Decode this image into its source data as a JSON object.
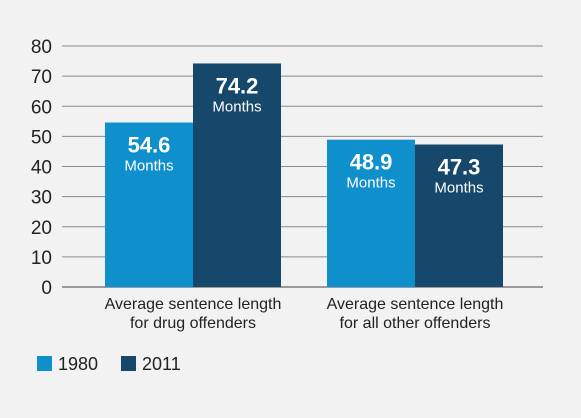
{
  "chart_data": {
    "type": "bar",
    "title": "",
    "xlabel": "",
    "ylabel": "",
    "ylim": [
      0,
      80
    ],
    "yticks": [
      0,
      10,
      20,
      30,
      40,
      50,
      60,
      70,
      80
    ],
    "grid": true,
    "legend_position": "bottom-left",
    "value_unit": "Months",
    "categories": [
      [
        "Average sentence length",
        "for drug offenders"
      ],
      [
        "Average sentence length",
        "for all other offenders"
      ]
    ],
    "series": [
      {
        "name": "1980",
        "color": "#0f8fcc",
        "values": [
          54.6,
          48.9
        ]
      },
      {
        "name": "2011",
        "color": "#15486b",
        "values": [
          74.2,
          47.3
        ]
      }
    ]
  }
}
